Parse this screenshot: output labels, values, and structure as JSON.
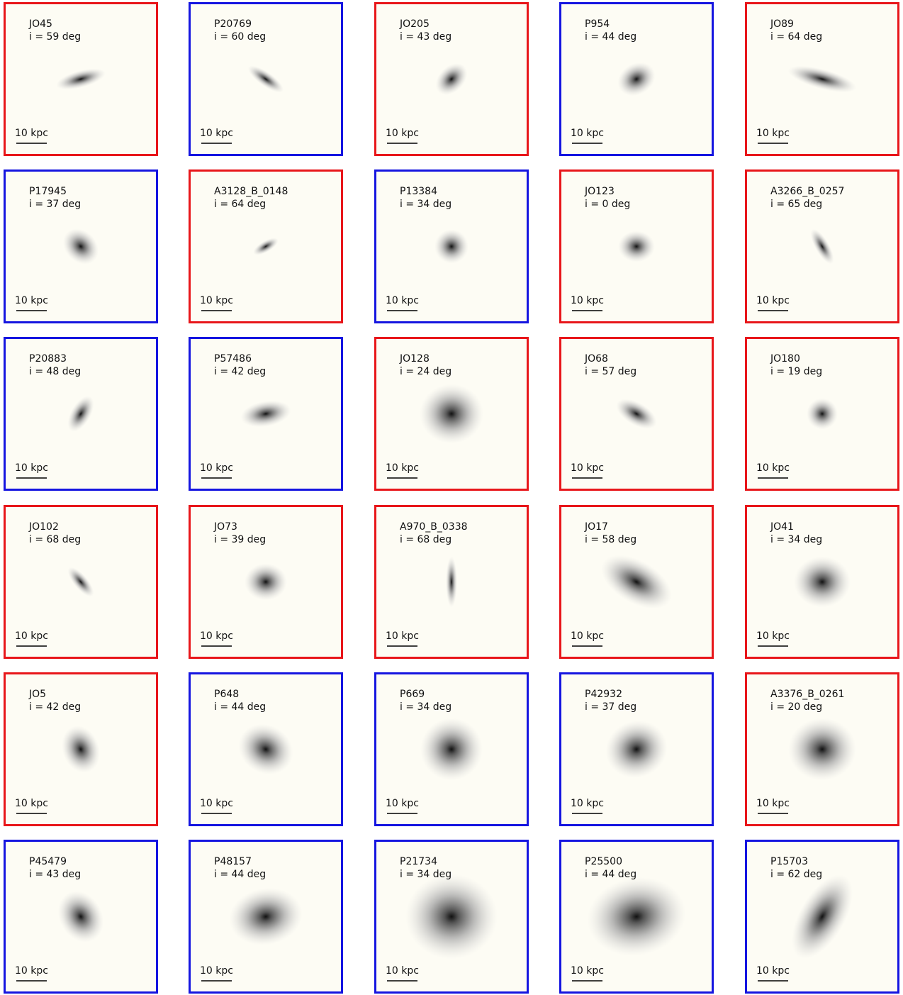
{
  "panels": [
    {
      "name": "JO45",
      "inclination": "i = 59 deg",
      "scale": "10 kpc",
      "frame_color": "#e8161a"
    },
    {
      "name": "P20769",
      "inclination": "i = 60 deg",
      "scale": "10 kpc",
      "frame_color": "#1515e0"
    },
    {
      "name": "JO205",
      "inclination": "i = 43 deg",
      "scale": "10 kpc",
      "frame_color": "#e8161a"
    },
    {
      "name": "P954",
      "inclination": "i = 44 deg",
      "scale": "10 kpc",
      "frame_color": "#1515e0"
    },
    {
      "name": "JO89",
      "inclination": "i = 64 deg",
      "scale": "10 kpc",
      "frame_color": "#e8161a"
    },
    {
      "name": "P17945",
      "inclination": "i = 37 deg",
      "scale": "10 kpc",
      "frame_color": "#1515e0"
    },
    {
      "name": "A3128_B_0148",
      "inclination": "i = 64 deg",
      "scale": "10 kpc",
      "frame_color": "#e8161a"
    },
    {
      "name": "P13384",
      "inclination": "i = 34 deg",
      "scale": "10 kpc",
      "frame_color": "#1515e0"
    },
    {
      "name": "JO123",
      "inclination": "i = 0 deg",
      "scale": "10 kpc",
      "frame_color": "#e8161a"
    },
    {
      "name": "A3266_B_0257",
      "inclination": "i = 65 deg",
      "scale": "10 kpc",
      "frame_color": "#e8161a"
    },
    {
      "name": "P20883",
      "inclination": "i = 48 deg",
      "scale": "10 kpc",
      "frame_color": "#1515e0"
    },
    {
      "name": "P57486",
      "inclination": "i = 42 deg",
      "scale": "10 kpc",
      "frame_color": "#1515e0"
    },
    {
      "name": "JO128",
      "inclination": "i = 24 deg",
      "scale": "10 kpc",
      "frame_color": "#e8161a"
    },
    {
      "name": "JO68",
      "inclination": "i = 57 deg",
      "scale": "10 kpc",
      "frame_color": "#e8161a"
    },
    {
      "name": "JO180",
      "inclination": "i = 19 deg",
      "scale": "10 kpc",
      "frame_color": "#e8161a"
    },
    {
      "name": "JO102",
      "inclination": "i = 68 deg",
      "scale": "10 kpc",
      "frame_color": "#e8161a"
    },
    {
      "name": "JO73",
      "inclination": "i = 39 deg",
      "scale": "10 kpc",
      "frame_color": "#e8161a"
    },
    {
      "name": "A970_B_0338",
      "inclination": "i = 68 deg",
      "scale": "10 kpc",
      "frame_color": "#e8161a"
    },
    {
      "name": "JO17",
      "inclination": "i = 58 deg",
      "scale": "10 kpc",
      "frame_color": "#e8161a"
    },
    {
      "name": "JO41",
      "inclination": "i = 34 deg",
      "scale": "10 kpc",
      "frame_color": "#e8161a"
    },
    {
      "name": "JO5",
      "inclination": "i = 42 deg",
      "scale": "10 kpc",
      "frame_color": "#e8161a"
    },
    {
      "name": "P648",
      "inclination": "i = 44 deg",
      "scale": "10 kpc",
      "frame_color": "#1515e0"
    },
    {
      "name": "P669",
      "inclination": "i = 34 deg",
      "scale": "10 kpc",
      "frame_color": "#1515e0"
    },
    {
      "name": "P42932",
      "inclination": "i = 37 deg",
      "scale": "10 kpc",
      "frame_color": "#1515e0"
    },
    {
      "name": "A3376_B_0261",
      "inclination": "i = 20 deg",
      "scale": "10 kpc",
      "frame_color": "#e8161a"
    },
    {
      "name": "P45479",
      "inclination": "i = 43 deg",
      "scale": "10 kpc",
      "frame_color": "#1515e0"
    },
    {
      "name": "P48157",
      "inclination": "i = 44 deg",
      "scale": "10 kpc",
      "frame_color": "#1515e0"
    },
    {
      "name": "P21734",
      "inclination": "i = 34 deg",
      "scale": "10 kpc",
      "frame_color": "#1515e0"
    },
    {
      "name": "P25500",
      "inclination": "i = 44 deg",
      "scale": "10 kpc",
      "frame_color": "#1515e0"
    },
    {
      "name": "P15703",
      "inclination": "i = 62 deg",
      "scale": "10 kpc",
      "frame_color": "#1515e0"
    }
  ]
}
